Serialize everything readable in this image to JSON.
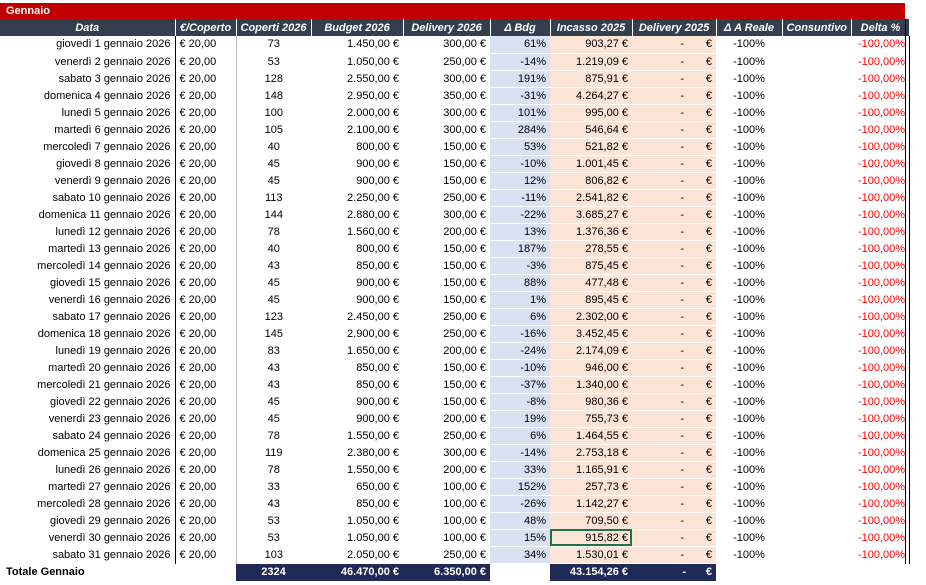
{
  "sheet": {
    "title": "Gennaio",
    "headers": [
      "Data",
      "€/Coperto",
      "Coperti 2026",
      "Budget 2026",
      "Delivery 2026",
      "Δ Bdg",
      "Incasso 2025",
      "Delivery 2025",
      "Δ A Reale",
      "Consuntivo",
      "Delta %"
    ],
    "rows": [
      {
        "data": "giovedì 1 gennaio 2026",
        "cpc": "€ 20,00",
        "cop": "73",
        "bud": "1.450,00 €",
        "del": "300,00 €",
        "bdg": "61%",
        "inc": "903,27 €",
        "d25": "-",
        "eur": "€",
        "reale": "-100%",
        "cons": "",
        "delta": "-100,00%"
      },
      {
        "data": "venerdì 2 gennaio 2026",
        "cpc": "€ 20,00",
        "cop": "53",
        "bud": "1.050,00 €",
        "del": "250,00 €",
        "bdg": "-14%",
        "inc": "1.219,09 €",
        "d25": "-",
        "eur": "€",
        "reale": "-100%",
        "cons": "",
        "delta": "-100,00%"
      },
      {
        "data": "sabato 3 gennaio 2026",
        "cpc": "€ 20,00",
        "cop": "128",
        "bud": "2.550,00 €",
        "del": "300,00 €",
        "bdg": "191%",
        "inc": "875,91 €",
        "d25": "-",
        "eur": "€",
        "reale": "-100%",
        "cons": "",
        "delta": "-100,00%"
      },
      {
        "data": "domenica 4 gennaio 2026",
        "cpc": "€ 20,00",
        "cop": "148",
        "bud": "2.950,00 €",
        "del": "350,00 €",
        "bdg": "-31%",
        "inc": "4.264,27 €",
        "d25": "-",
        "eur": "€",
        "reale": "-100%",
        "cons": "",
        "delta": "-100,00%"
      },
      {
        "data": "lunedì 5 gennaio 2026",
        "cpc": "€ 20,00",
        "cop": "100",
        "bud": "2.000,00 €",
        "del": "300,00 €",
        "bdg": "101%",
        "inc": "995,00 €",
        "d25": "-",
        "eur": "€",
        "reale": "-100%",
        "cons": "",
        "delta": "-100,00%"
      },
      {
        "data": "martedì 6 gennaio 2026",
        "cpc": "€ 20,00",
        "cop": "105",
        "bud": "2.100,00 €",
        "del": "300,00 €",
        "bdg": "284%",
        "inc": "546,64 €",
        "d25": "-",
        "eur": "€",
        "reale": "-100%",
        "cons": "",
        "delta": "-100,00%"
      },
      {
        "data": "mercoledì 7 gennaio 2026",
        "cpc": "€ 20,00",
        "cop": "40",
        "bud": "800,00 €",
        "del": "150,00 €",
        "bdg": "53%",
        "inc": "521,82 €",
        "d25": "-",
        "eur": "€",
        "reale": "-100%",
        "cons": "",
        "delta": "-100,00%"
      },
      {
        "data": "giovedì 8 gennaio 2026",
        "cpc": "€ 20,00",
        "cop": "45",
        "bud": "900,00 €",
        "del": "150,00 €",
        "bdg": "-10%",
        "inc": "1.001,45 €",
        "d25": "-",
        "eur": "€",
        "reale": "-100%",
        "cons": "",
        "delta": "-100,00%"
      },
      {
        "data": "venerdì 9 gennaio 2026",
        "cpc": "€ 20,00",
        "cop": "45",
        "bud": "900,00 €",
        "del": "150,00 €",
        "bdg": "12%",
        "inc": "806,82 €",
        "d25": "-",
        "eur": "€",
        "reale": "-100%",
        "cons": "",
        "delta": "-100,00%"
      },
      {
        "data": "sabato 10 gennaio 2026",
        "cpc": "€ 20,00",
        "cop": "113",
        "bud": "2.250,00 €",
        "del": "250,00 €",
        "bdg": "-11%",
        "inc": "2.541,82 €",
        "d25": "-",
        "eur": "€",
        "reale": "-100%",
        "cons": "",
        "delta": "-100,00%"
      },
      {
        "data": "domenica 11 gennaio 2026",
        "cpc": "€ 20,00",
        "cop": "144",
        "bud": "2.880,00 €",
        "del": "300,00 €",
        "bdg": "-22%",
        "inc": "3.685,27 €",
        "d25": "-",
        "eur": "€",
        "reale": "-100%",
        "cons": "",
        "delta": "-100,00%"
      },
      {
        "data": "lunedì 12 gennaio 2026",
        "cpc": "€ 20,00",
        "cop": "78",
        "bud": "1.560,00 €",
        "del": "200,00 €",
        "bdg": "13%",
        "inc": "1.376,36 €",
        "d25": "-",
        "eur": "€",
        "reale": "-100%",
        "cons": "",
        "delta": "-100,00%"
      },
      {
        "data": "martedì 13 gennaio 2026",
        "cpc": "€ 20,00",
        "cop": "40",
        "bud": "800,00 €",
        "del": "150,00 €",
        "bdg": "187%",
        "inc": "278,55 €",
        "d25": "-",
        "eur": "€",
        "reale": "-100%",
        "cons": "",
        "delta": "-100,00%"
      },
      {
        "data": "mercoledì 14 gennaio 2026",
        "cpc": "€ 20,00",
        "cop": "43",
        "bud": "850,00 €",
        "del": "150,00 €",
        "bdg": "-3%",
        "inc": "875,45 €",
        "d25": "-",
        "eur": "€",
        "reale": "-100%",
        "cons": "",
        "delta": "-100,00%"
      },
      {
        "data": "giovedì 15 gennaio 2026",
        "cpc": "€ 20,00",
        "cop": "45",
        "bud": "900,00 €",
        "del": "150,00 €",
        "bdg": "88%",
        "inc": "477,48 €",
        "d25": "-",
        "eur": "€",
        "reale": "-100%",
        "cons": "",
        "delta": "-100,00%"
      },
      {
        "data": "venerdì 16 gennaio 2026",
        "cpc": "€ 20,00",
        "cop": "45",
        "bud": "900,00 €",
        "del": "150,00 €",
        "bdg": "1%",
        "inc": "895,45 €",
        "d25": "-",
        "eur": "€",
        "reale": "-100%",
        "cons": "",
        "delta": "-100,00%"
      },
      {
        "data": "sabato 17 gennaio 2026",
        "cpc": "€ 20,00",
        "cop": "123",
        "bud": "2.450,00 €",
        "del": "250,00 €",
        "bdg": "6%",
        "inc": "2.302,00 €",
        "d25": "-",
        "eur": "€",
        "reale": "-100%",
        "cons": "",
        "delta": "-100,00%"
      },
      {
        "data": "domenica 18 gennaio 2026",
        "cpc": "€ 20,00",
        "cop": "145",
        "bud": "2.900,00 €",
        "del": "250,00 €",
        "bdg": "-16%",
        "inc": "3.452,45 €",
        "d25": "-",
        "eur": "€",
        "reale": "-100%",
        "cons": "",
        "delta": "-100,00%"
      },
      {
        "data": "lunedì 19 gennaio 2026",
        "cpc": "€ 20,00",
        "cop": "83",
        "bud": "1.650,00 €",
        "del": "200,00 €",
        "bdg": "-24%",
        "inc": "2.174,09 €",
        "d25": "-",
        "eur": "€",
        "reale": "-100%",
        "cons": "",
        "delta": "-100,00%"
      },
      {
        "data": "martedì 20 gennaio 2026",
        "cpc": "€ 20,00",
        "cop": "43",
        "bud": "850,00 €",
        "del": "150,00 €",
        "bdg": "-10%",
        "inc": "946,00 €",
        "d25": "-",
        "eur": "€",
        "reale": "-100%",
        "cons": "",
        "delta": "-100,00%"
      },
      {
        "data": "mercoledì 21 gennaio 2026",
        "cpc": "€ 20,00",
        "cop": "43",
        "bud": "850,00 €",
        "del": "150,00 €",
        "bdg": "-37%",
        "inc": "1.340,00 €",
        "d25": "-",
        "eur": "€",
        "reale": "-100%",
        "cons": "",
        "delta": "-100,00%"
      },
      {
        "data": "giovedì 22 gennaio 2026",
        "cpc": "€ 20,00",
        "cop": "45",
        "bud": "900,00 €",
        "del": "150,00 €",
        "bdg": "-8%",
        "inc": "980,36 €",
        "d25": "-",
        "eur": "€",
        "reale": "-100%",
        "cons": "",
        "delta": "-100,00%"
      },
      {
        "data": "venerdì 23 gennaio 2026",
        "cpc": "€ 20,00",
        "cop": "45",
        "bud": "900,00 €",
        "del": "200,00 €",
        "bdg": "19%",
        "inc": "755,73 €",
        "d25": "-",
        "eur": "€",
        "reale": "-100%",
        "cons": "",
        "delta": "-100,00%"
      },
      {
        "data": "sabato 24 gennaio 2026",
        "cpc": "€ 20,00",
        "cop": "78",
        "bud": "1.550,00 €",
        "del": "250,00 €",
        "bdg": "6%",
        "inc": "1.464,55 €",
        "d25": "-",
        "eur": "€",
        "reale": "-100%",
        "cons": "",
        "delta": "-100,00%"
      },
      {
        "data": "domenica 25 gennaio 2026",
        "cpc": "€ 20,00",
        "cop": "119",
        "bud": "2.380,00 €",
        "del": "300,00 €",
        "bdg": "-14%",
        "inc": "2.753,18 €",
        "d25": "-",
        "eur": "€",
        "reale": "-100%",
        "cons": "",
        "delta": "-100,00%"
      },
      {
        "data": "lunedì 26 gennaio 2026",
        "cpc": "€ 20,00",
        "cop": "78",
        "bud": "1.550,00 €",
        "del": "200,00 €",
        "bdg": "33%",
        "inc": "1.165,91 €",
        "d25": "-",
        "eur": "€",
        "reale": "-100%",
        "cons": "",
        "delta": "-100,00%"
      },
      {
        "data": "martedì 27 gennaio 2026",
        "cpc": "€ 20,00",
        "cop": "33",
        "bud": "650,00 €",
        "del": "100,00 €",
        "bdg": "152%",
        "inc": "257,73 €",
        "d25": "-",
        "eur": "€",
        "reale": "-100%",
        "cons": "",
        "delta": "-100,00%"
      },
      {
        "data": "mercoledì 28 gennaio 2026",
        "cpc": "€ 20,00",
        "cop": "43",
        "bud": "850,00 €",
        "del": "100,00 €",
        "bdg": "-26%",
        "inc": "1.142,27 €",
        "d25": "-",
        "eur": "€",
        "reale": "-100%",
        "cons": "",
        "delta": "-100,00%"
      },
      {
        "data": "giovedì 29 gennaio 2026",
        "cpc": "€ 20,00",
        "cop": "53",
        "bud": "1.050,00 €",
        "del": "100,00 €",
        "bdg": "48%",
        "inc": "709,50 €",
        "d25": "-",
        "eur": "€",
        "reale": "-100%",
        "cons": "",
        "delta": "-100,00%"
      },
      {
        "data": "venerdì 30 gennaio 2026",
        "cpc": "€ 20,00",
        "cop": "53",
        "bud": "1.050,00 €",
        "del": "100,00 €",
        "bdg": "15%",
        "inc": "915,82 €",
        "d25": "-",
        "eur": "€",
        "reale": "-100%",
        "cons": "",
        "delta": "-100,00%"
      },
      {
        "data": "sabato 31 gennaio 2026",
        "cpc": "€ 20,00",
        "cop": "103",
        "bud": "2.050,00 €",
        "del": "250,00 €",
        "bdg": "34%",
        "inc": "1.530,01 €",
        "d25": "-",
        "eur": "€",
        "reale": "-100%",
        "cons": "",
        "delta": "-100,00%"
      }
    ],
    "totals": {
      "label": "Totale Gennaio",
      "coperti": "2324",
      "budget": "46.470,00 €",
      "delivery": "6.350,00 €",
      "incasso": "43.154,26 €",
      "d25": "-",
      "eur": "€"
    },
    "selected_row_index": 29,
    "colors": {
      "title_bg": "#c00000",
      "header_bg": "#333f4f",
      "bdg_col": "#d9e1f2",
      "incasso_col": "#fce4d6",
      "totals_bg": "#1f2a56",
      "negative_text": "#ff0000"
    }
  }
}
